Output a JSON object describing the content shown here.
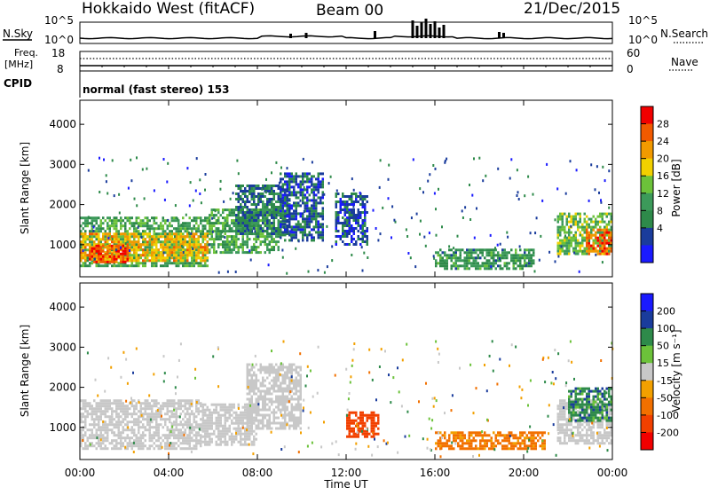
{
  "header": {
    "station": "Hokkaido West (fitACF)",
    "beam": "Beam 00",
    "date": "21/Dec/2015"
  },
  "noise_panel": {
    "left_label": "N.Sky",
    "right_label": "N.Search",
    "scale_top": "10^5",
    "scale_bottom": "10^0",
    "right_scale_top": "10^5",
    "right_scale_bottom": "10^0"
  },
  "freq_panel": {
    "left_label_line1": "Freq.",
    "left_label_line2": "[MHz]",
    "left_top": "18",
    "left_bottom": "8",
    "right_label": "Nave",
    "right_top": "60",
    "right_bottom": "0"
  },
  "cpid_panel": {
    "label": "CPID",
    "text": "normal (fast stereo) 153"
  },
  "colors": {
    "power_scale": [
      "#1a1aff",
      "#1a3c9c",
      "#2e8a4a",
      "#3c9a5a",
      "#6cc23a",
      "#f2d000",
      "#f29a00",
      "#f25a00",
      "#f20000"
    ],
    "velocity_scale": [
      "#1a1aff",
      "#1a3c9c",
      "#2e8a4a",
      "#6cc23a",
      "#c8c8c8",
      "#f2a000",
      "#f27000",
      "#f24000",
      "#f20000"
    ],
    "ground_scatter": "#c8c8c8"
  },
  "chart_data": [
    {
      "type": "heatmap",
      "quantity": "Power",
      "ylabel": "Slant Range [km]",
      "yticks": [
        "1000",
        "2000",
        "3000",
        "4000"
      ],
      "ylim": [
        200,
        4600
      ],
      "xlim_hours": [
        0,
        24
      ],
      "colorbar": {
        "label": "Power [dB]",
        "ticks": [
          "4",
          "8",
          "12",
          "16",
          "20",
          "24",
          "28"
        ],
        "range": [
          0,
          30
        ]
      },
      "regions": [
        {
          "t0": 0.0,
          "t1": 5.8,
          "r0": 500,
          "r1": 1700,
          "db": 12
        },
        {
          "t0": 0.0,
          "t1": 5.8,
          "r0": 600,
          "r1": 1300,
          "db": 20
        },
        {
          "t0": 0.4,
          "t1": 2.2,
          "r0": 600,
          "r1": 1000,
          "db": 26
        },
        {
          "t0": 5.8,
          "t1": 9.0,
          "r0": 800,
          "r1": 1900,
          "db": 12
        },
        {
          "t0": 7.0,
          "t1": 9.5,
          "r0": 1300,
          "r1": 2500,
          "db": 8
        },
        {
          "t0": 9.0,
          "t1": 11.0,
          "r0": 1100,
          "r1": 2800,
          "db": 6
        },
        {
          "t0": 11.5,
          "t1": 13.0,
          "r0": 1000,
          "r1": 2300,
          "db": 5
        },
        {
          "t0": 16.0,
          "t1": 20.5,
          "r0": 400,
          "r1": 900,
          "db": 10
        },
        {
          "t0": 21.5,
          "t1": 24.0,
          "r0": 800,
          "r1": 1800,
          "db": 14
        },
        {
          "t0": 22.8,
          "t1": 24.0,
          "r0": 800,
          "r1": 1400,
          "db": 24
        }
      ]
    },
    {
      "type": "heatmap",
      "quantity": "Velocity",
      "ylabel": "Slant Range [km]",
      "xlabel": "Time UT",
      "yticks": [
        "1000",
        "2000",
        "3000",
        "4000"
      ],
      "xticks": [
        "00:00",
        "04:00",
        "08:00",
        "12:00",
        "16:00",
        "20:00",
        "00:00"
      ],
      "ylim": [
        200,
        4600
      ],
      "xlim_hours": [
        0,
        24
      ],
      "colorbar": {
        "label": "Velocity [m s⁻¹]",
        "ticks": [
          "200",
          "100",
          "50",
          "15",
          "-15",
          "-50",
          "-100",
          "-200"
        ],
        "range": [
          -250,
          250
        ]
      },
      "regions": [
        {
          "t0": 0.0,
          "t1": 5.5,
          "r0": 500,
          "r1": 1700,
          "v": 0
        },
        {
          "t0": 5.5,
          "t1": 8.0,
          "r0": 600,
          "r1": 1600,
          "v": 0
        },
        {
          "t0": 7.5,
          "t1": 10.0,
          "r0": 1000,
          "r1": 2600,
          "v": 0
        },
        {
          "t0": 12.0,
          "t1": 13.5,
          "r0": 800,
          "r1": 1400,
          "v": -150
        },
        {
          "t0": 16.0,
          "t1": 21.0,
          "r0": 450,
          "r1": 900,
          "v": -60
        },
        {
          "t0": 21.5,
          "t1": 24.0,
          "r0": 600,
          "r1": 1700,
          "v": 0
        },
        {
          "t0": 22.0,
          "t1": 24.0,
          "r0": 1200,
          "r1": 2000,
          "v": 40
        }
      ]
    }
  ]
}
